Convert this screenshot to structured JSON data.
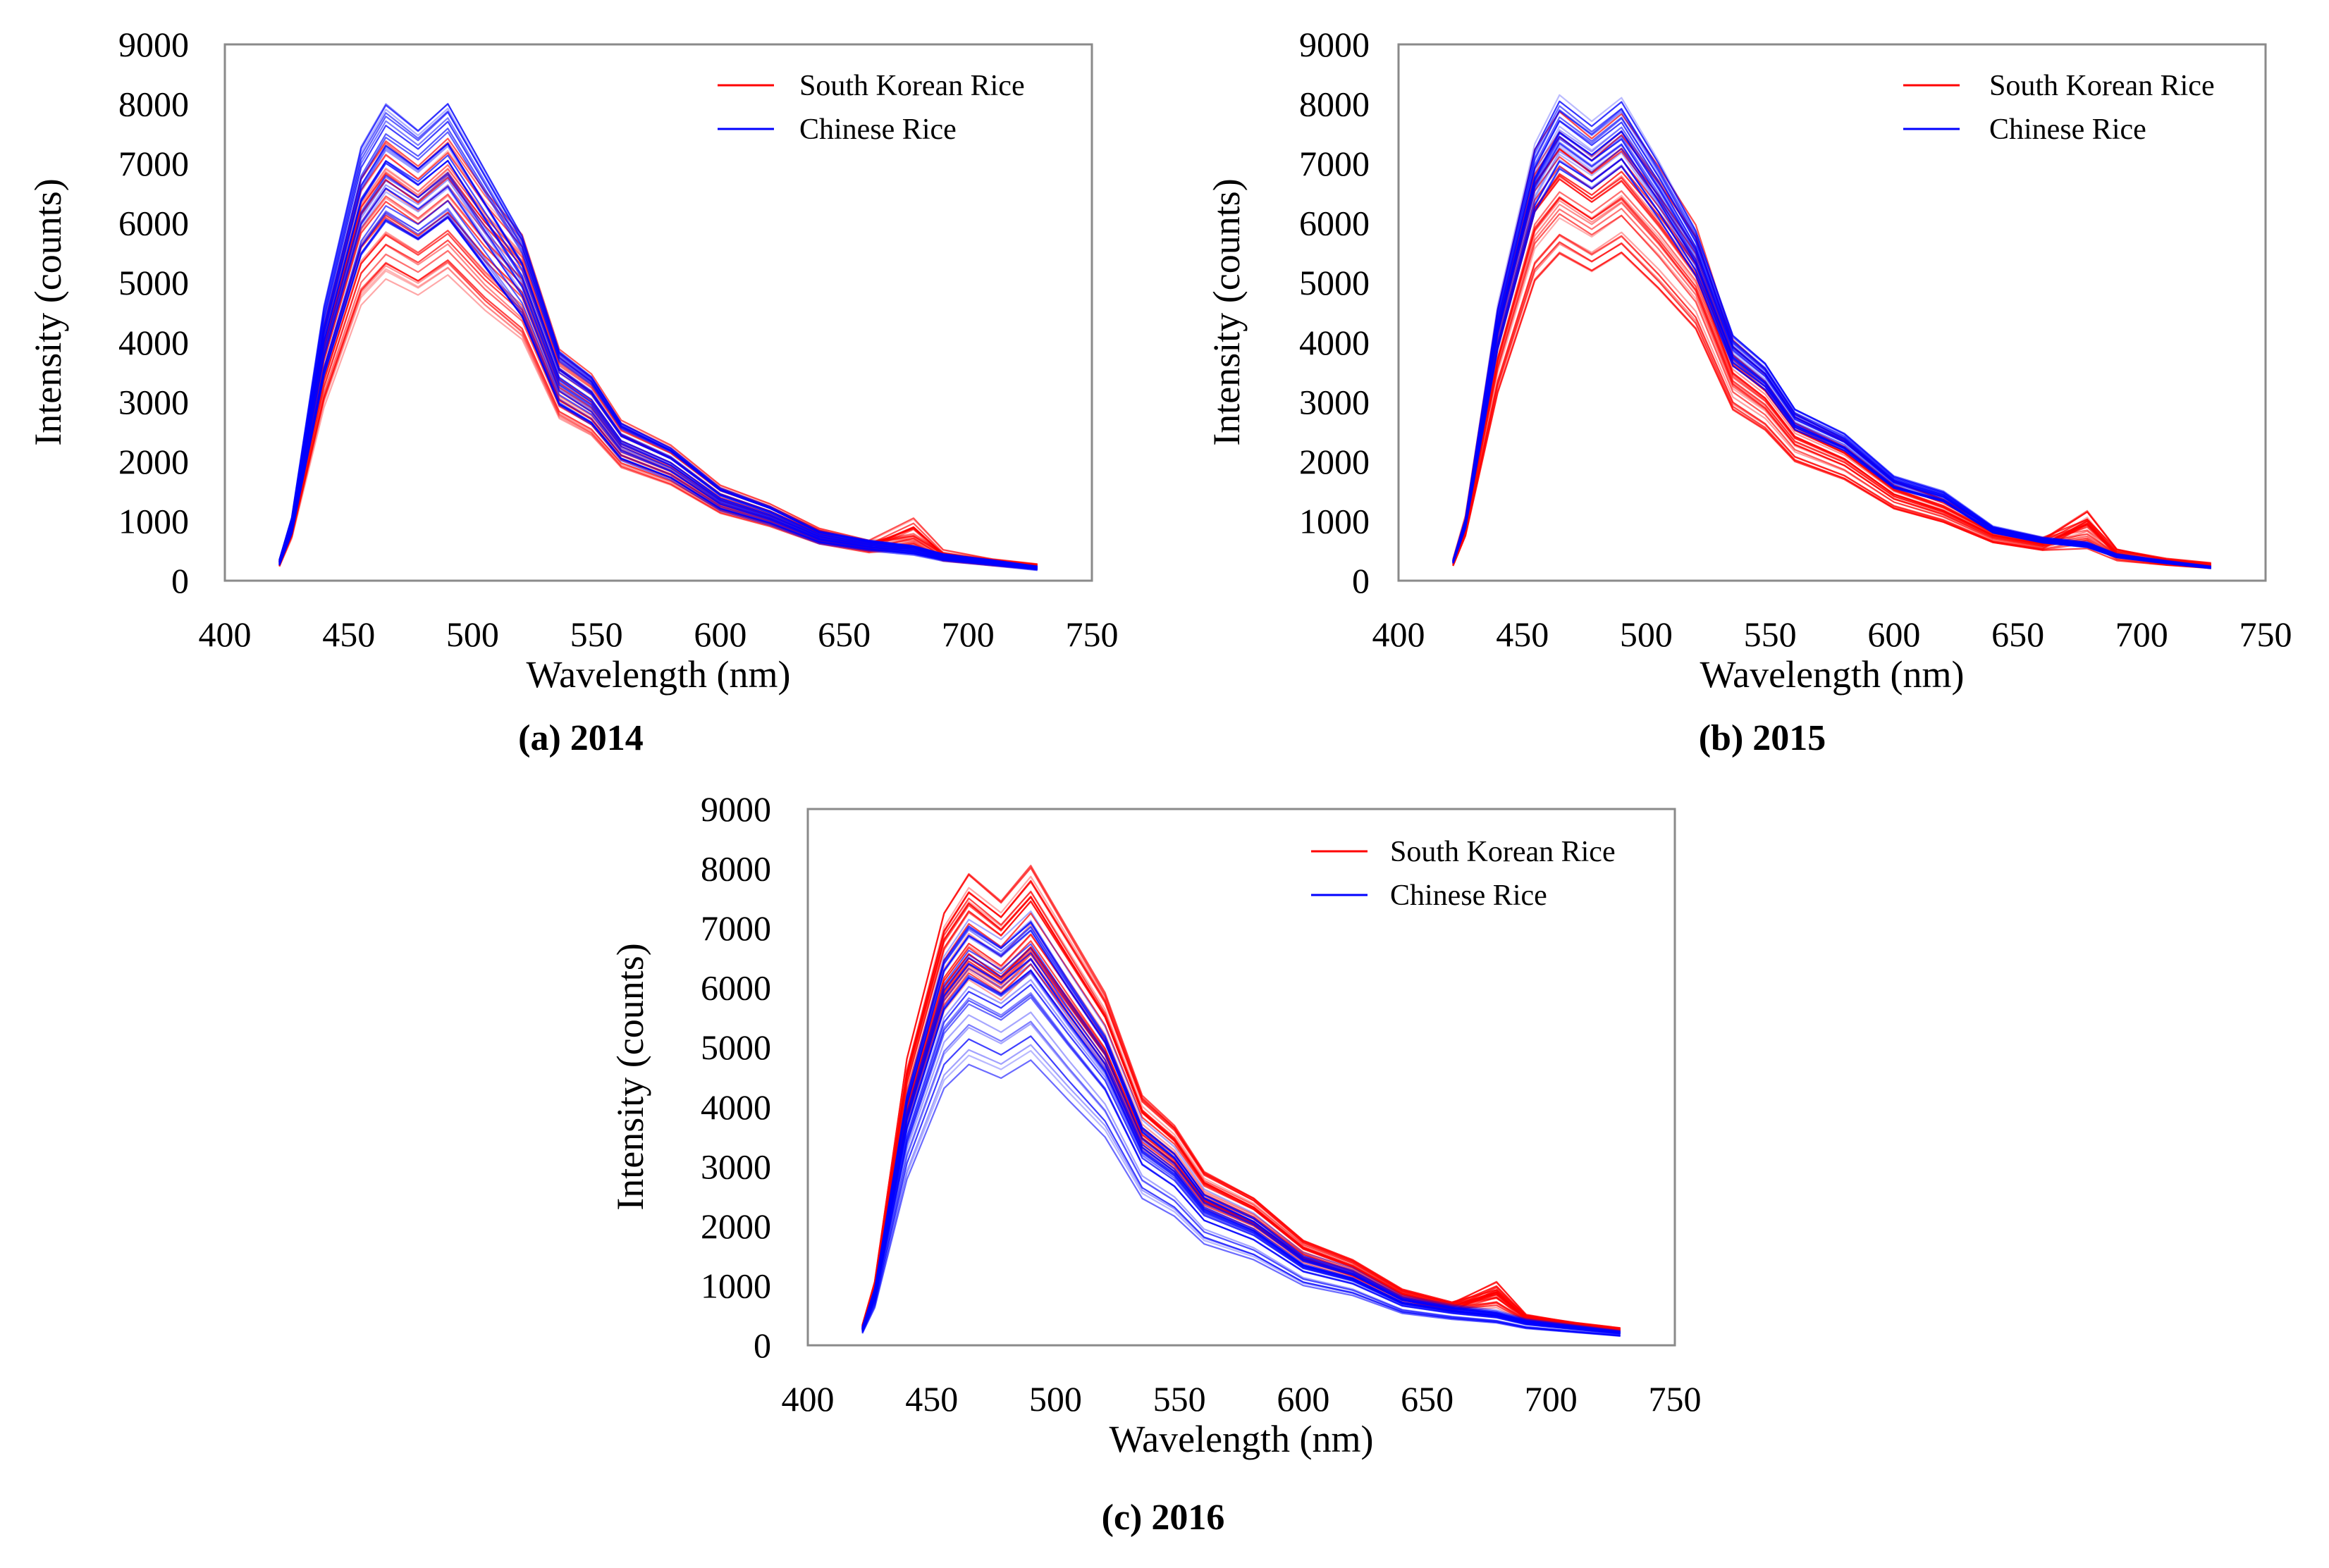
{
  "figure": {
    "panels": [
      "a",
      "b",
      "c"
    ]
  },
  "chart_data": [
    {
      "id": "a",
      "type": "line",
      "caption": "(a) 2014",
      "xlabel": "Wavelength (nm)",
      "ylabel": "Intensity (counts)",
      "xlim": [
        400,
        750
      ],
      "ylim": [
        0,
        9000
      ],
      "xticks": [
        400,
        450,
        500,
        550,
        600,
        650,
        700,
        750
      ],
      "yticks": [
        0,
        1000,
        2000,
        3000,
        4000,
        5000,
        6000,
        7000,
        8000,
        9000
      ],
      "legend_position": "top-right",
      "series_colors": {
        "South Korean Rice": "#ff0000",
        "Chinese Rice": "#0000ff"
      },
      "x": [
        422,
        427,
        440,
        455,
        465,
        478,
        490,
        505,
        520,
        535,
        548,
        560,
        580,
        600,
        620,
        640,
        660,
        678,
        690,
        710,
        728
      ],
      "series": [
        {
          "name": "South Korean Rice",
          "color": "#ff0000",
          "curve_count": 30,
          "peak_min": 5200,
          "peak_max": 7400,
          "chlorophyll_bump": 350,
          "values": [
            330,
            1000,
            4100,
            6500,
            7100,
            6700,
            7150,
            6300,
            5600,
            3750,
            3350,
            2600,
            2200,
            1550,
            1250,
            850,
            650,
            700,
            450,
            350,
            270
          ]
        },
        {
          "name": "Chinese Rice",
          "color": "#0000ff",
          "curve_count": 30,
          "peak_min": 6000,
          "peak_max": 8000,
          "chlorophyll_bump": 0,
          "values": [
            330,
            1000,
            4350,
            6900,
            7600,
            7200,
            7650,
            6600,
            5550,
            3700,
            3300,
            2550,
            2150,
            1500,
            1200,
            800,
            650,
            560,
            430,
            330,
            230
          ]
        }
      ]
    },
    {
      "id": "b",
      "type": "line",
      "caption": "(b) 2015",
      "xlabel": "Wavelength (nm)",
      "ylabel": "Intensity (counts)",
      "xlim": [
        400,
        750
      ],
      "ylim": [
        0,
        9000
      ],
      "xticks": [
        400,
        450,
        500,
        550,
        600,
        650,
        700,
        750
      ],
      "yticks": [
        0,
        1000,
        2000,
        3000,
        4000,
        5000,
        6000,
        7000,
        8000,
        9000
      ],
      "legend_position": "top-right",
      "series_colors": {
        "South Korean Rice": "#ff0000",
        "Chinese Rice": "#0000ff"
      },
      "x": [
        422,
        427,
        440,
        455,
        465,
        478,
        490,
        505,
        520,
        535,
        548,
        560,
        580,
        600,
        620,
        640,
        660,
        678,
        690,
        710,
        728
      ],
      "series": [
        {
          "name": "South Korean Rice",
          "color": "#ff0000",
          "curve_count": 30,
          "peak_min": 5500,
          "peak_max": 7800,
          "chlorophyll_bump": 450,
          "values": [
            330,
            1000,
            4200,
            6700,
            7300,
            6900,
            7300,
            6500,
            5600,
            3800,
            3350,
            2650,
            2250,
            1600,
            1300,
            850,
            680,
            720,
            450,
            350,
            280
          ]
        },
        {
          "name": "Chinese Rice",
          "color": "#0000ff",
          "curve_count": 30,
          "peak_min": 7000,
          "peak_max": 8200,
          "chlorophyll_bump": 0,
          "values": [
            330,
            1000,
            4400,
            7000,
            7800,
            7400,
            7800,
            6800,
            5700,
            4000,
            3550,
            2800,
            2400,
            1700,
            1450,
            880,
            700,
            620,
            430,
            320,
            230
          ]
        }
      ]
    },
    {
      "id": "c",
      "type": "line",
      "caption": "(c) 2016",
      "xlabel": "Wavelength (nm)",
      "ylabel": "Intensity (counts)",
      "xlim": [
        400,
        750
      ],
      "ylim": [
        0,
        9000
      ],
      "xticks": [
        400,
        450,
        500,
        550,
        600,
        650,
        700,
        750
      ],
      "yticks": [
        0,
        1000,
        2000,
        3000,
        4000,
        5000,
        6000,
        7000,
        8000,
        9000
      ],
      "legend_position": "top-right",
      "series_colors": {
        "South Korean Rice": "#ff0000",
        "Chinese Rice": "#0000ff"
      },
      "x": [
        422,
        427,
        440,
        455,
        465,
        478,
        490,
        505,
        520,
        535,
        548,
        560,
        580,
        600,
        620,
        640,
        660,
        678,
        690,
        710,
        728
      ],
      "series": [
        {
          "name": "South Korean Rice",
          "color": "#ff0000",
          "curve_count": 30,
          "peak_min": 6300,
          "peak_max": 8000,
          "chlorophyll_bump": 350,
          "values": [
            300,
            950,
            4300,
            6500,
            7100,
            6700,
            7250,
            6300,
            5350,
            3800,
            3350,
            2650,
            2250,
            1600,
            1300,
            850,
            650,
            700,
            430,
            340,
            260
          ]
        },
        {
          "name": "Chinese Rice",
          "color": "#0000ff",
          "curve_count": 30,
          "peak_min": 4800,
          "peak_max": 7600,
          "chlorophyll_bump": 0,
          "values": [
            300,
            950,
            4200,
            6500,
            7100,
            6750,
            7200,
            6200,
            5250,
            3700,
            3250,
            2550,
            2150,
            1500,
            1250,
            800,
            650,
            560,
            420,
            320,
            230
          ]
        }
      ]
    }
  ]
}
